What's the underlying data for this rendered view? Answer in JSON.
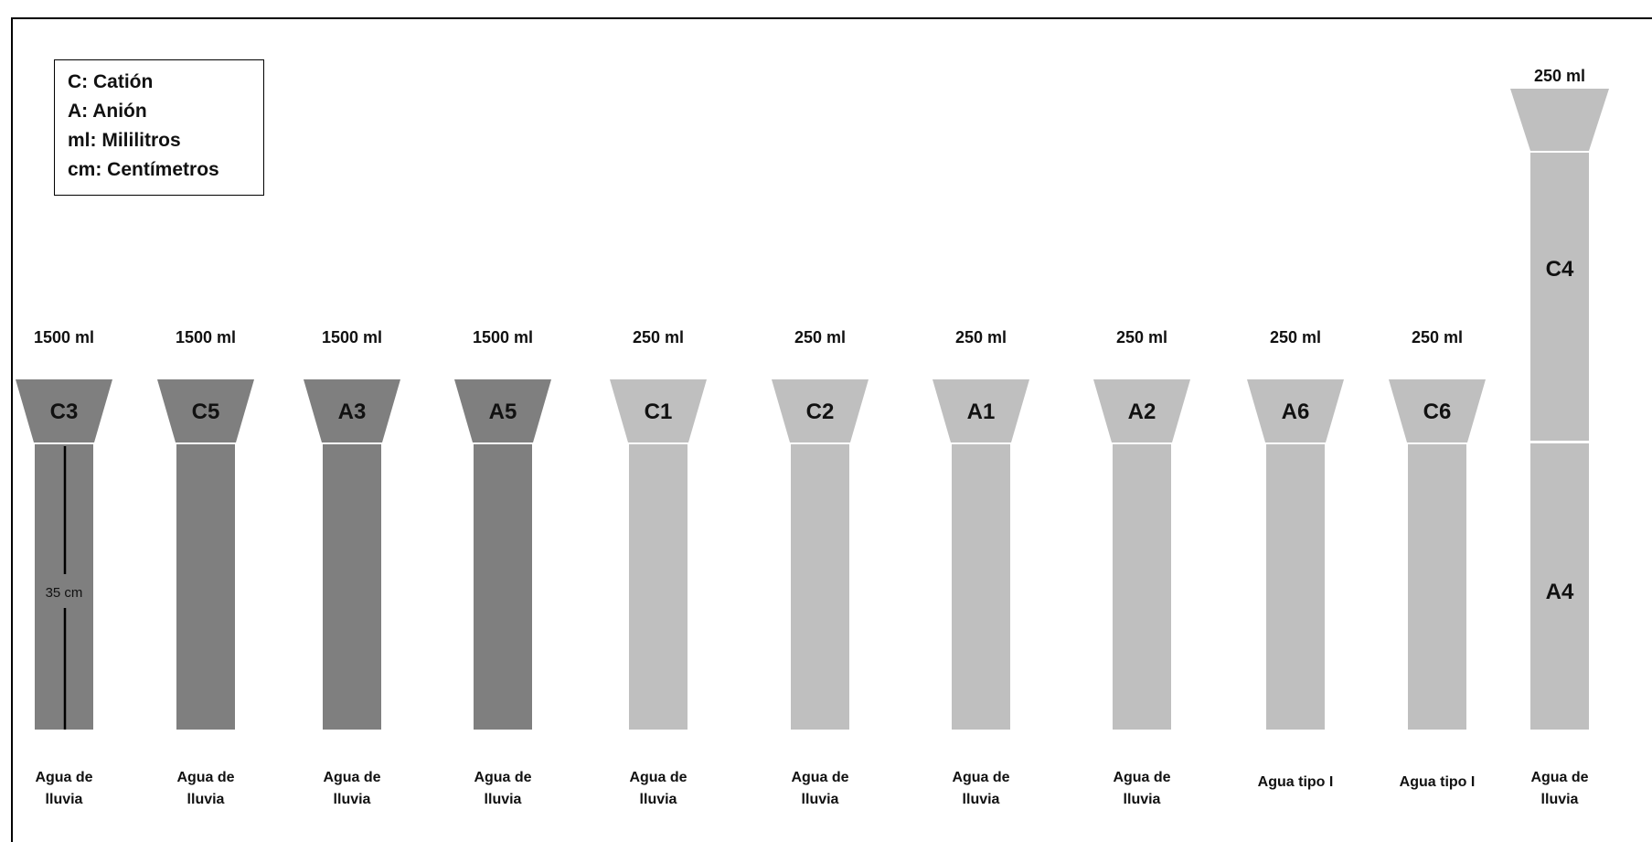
{
  "legend": {
    "items": [
      "C: Catión",
      "A: Anión",
      "ml: Mililitros",
      "cm: Centímetros"
    ]
  },
  "colors": {
    "dark": "#7f7f7f",
    "light": "#bfbfbf",
    "text": "#111111",
    "border": "#000000"
  },
  "columns": [
    {
      "id": "C3",
      "volume": "1500 ml",
      "water": [
        "Agua de",
        "lluvia"
      ],
      "shade": "dark"
    },
    {
      "id": "C5",
      "volume": "1500 ml",
      "water": [
        "Agua de",
        "lluvia"
      ],
      "shade": "dark"
    },
    {
      "id": "A3",
      "volume": "1500 ml",
      "water": [
        "Agua de",
        "lluvia"
      ],
      "shade": "dark"
    },
    {
      "id": "A5",
      "volume": "1500 ml",
      "water": [
        "Agua de",
        "lluvia"
      ],
      "shade": "dark"
    },
    {
      "id": "C1",
      "volume": "250 ml",
      "water": [
        "Agua de",
        "lluvia"
      ],
      "shade": "light"
    },
    {
      "id": "C2",
      "volume": "250 ml",
      "water": [
        "Agua de",
        "lluvia"
      ],
      "shade": "light"
    },
    {
      "id": "A1",
      "volume": "250 ml",
      "water": [
        "Agua de",
        "lluvia"
      ],
      "shade": "light"
    },
    {
      "id": "A2",
      "volume": "250 ml",
      "water": [
        "Agua de",
        "lluvia"
      ],
      "shade": "light"
    },
    {
      "id": "A6",
      "volume": "250 ml",
      "water": [
        "Agua tipo I"
      ],
      "shade": "light"
    },
    {
      "id": "C6",
      "volume": "250 ml",
      "water": [
        "Agua tipo I"
      ],
      "shade": "light"
    }
  ],
  "tall_column": {
    "volume": "250 ml",
    "upper_id": "C4",
    "lower_id": "A4",
    "water": [
      "Agua de",
      "lluvia"
    ],
    "shade": "light"
  },
  "dimension": {
    "label": "35 cm",
    "column": "C3"
  }
}
